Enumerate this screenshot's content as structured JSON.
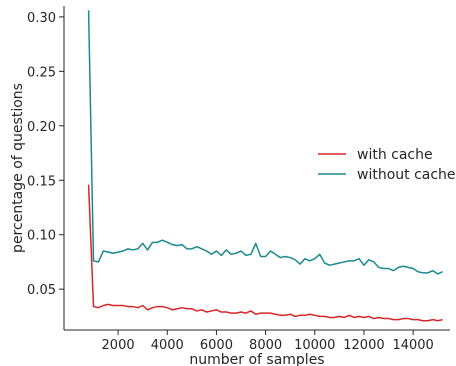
{
  "chart_data": {
    "type": "line",
    "title": "",
    "xlabel": "number of samples",
    "ylabel": "percentage of questions",
    "xlim": [
      -200,
      15500
    ],
    "ylim": [
      0.0125,
      0.31
    ],
    "xticks": [
      2000,
      4000,
      6000,
      8000,
      10000,
      12000,
      14000
    ],
    "yticks": [
      0.05,
      0.1,
      0.15,
      0.2,
      0.25,
      0.3
    ],
    "xtick_labels": [
      "2000",
      "4000",
      "6000",
      "8000",
      "10000",
      "12000",
      "14000"
    ],
    "ytick_labels": [
      "0.05",
      "0.10",
      "0.15",
      "0.20",
      "0.25",
      "0.30"
    ],
    "grid": false,
    "legend_position": "center-right",
    "series": [
      {
        "name": "with cache",
        "color": "#d62728",
        "x": [
          800,
          1000,
          1200,
          1400,
          1600,
          1800,
          2000,
          2200,
          2400,
          2600,
          2800,
          3000,
          3200,
          3400,
          3600,
          3800,
          4000,
          4200,
          4400,
          4600,
          4800,
          5000,
          5200,
          5400,
          5600,
          5800,
          6000,
          6200,
          6400,
          6600,
          6800,
          7000,
          7200,
          7400,
          7600,
          7800,
          8000,
          8200,
          8400,
          8600,
          8800,
          9000,
          9200,
          9400,
          9600,
          9800,
          10000,
          10200,
          10400,
          10600,
          10800,
          11000,
          11200,
          11400,
          11600,
          11800,
          12000,
          12200,
          12400,
          12600,
          12800,
          13000,
          13200,
          13400,
          13600,
          13800,
          14000,
          14200,
          14400,
          14600,
          14800,
          15000,
          15200
        ],
        "y": [
          0.146,
          0.034,
          0.033,
          0.035,
          0.036,
          0.035,
          0.035,
          0.035,
          0.034,
          0.034,
          0.033,
          0.035,
          0.031,
          0.033,
          0.034,
          0.034,
          0.033,
          0.031,
          0.032,
          0.033,
          0.032,
          0.032,
          0.03,
          0.031,
          0.029,
          0.03,
          0.031,
          0.029,
          0.029,
          0.028,
          0.028,
          0.029,
          0.028,
          0.03,
          0.027,
          0.028,
          0.028,
          0.028,
          0.027,
          0.026,
          0.026,
          0.027,
          0.025,
          0.026,
          0.026,
          0.027,
          0.026,
          0.025,
          0.025,
          0.024,
          0.024,
          0.025,
          0.024,
          0.026,
          0.024,
          0.025,
          0.024,
          0.025,
          0.023,
          0.024,
          0.023,
          0.023,
          0.022,
          0.022,
          0.023,
          0.023,
          0.022,
          0.022,
          0.021,
          0.021,
          0.022,
          0.021,
          0.022
        ]
      },
      {
        "name": "without cache",
        "color": "#1a8a8f",
        "x": [
          800,
          1000,
          1200,
          1400,
          1600,
          1800,
          2000,
          2200,
          2400,
          2600,
          2800,
          3000,
          3200,
          3400,
          3600,
          3800,
          4000,
          4200,
          4400,
          4600,
          4800,
          5000,
          5200,
          5400,
          5600,
          5800,
          6000,
          6200,
          6400,
          6600,
          6800,
          7000,
          7200,
          7400,
          7600,
          7800,
          8000,
          8200,
          8400,
          8600,
          8800,
          9000,
          9200,
          9400,
          9600,
          9800,
          10000,
          10200,
          10400,
          10600,
          10800,
          11000,
          11200,
          11400,
          11600,
          11800,
          12000,
          12200,
          12400,
          12600,
          12800,
          13000,
          13200,
          13400,
          13600,
          13800,
          14000,
          14200,
          14400,
          14600,
          14800,
          15000,
          15200
        ],
        "y": [
          0.306,
          0.076,
          0.075,
          0.085,
          0.084,
          0.083,
          0.084,
          0.085,
          0.087,
          0.086,
          0.087,
          0.092,
          0.086,
          0.093,
          0.093,
          0.095,
          0.093,
          0.091,
          0.09,
          0.091,
          0.087,
          0.087,
          0.089,
          0.087,
          0.085,
          0.082,
          0.085,
          0.081,
          0.086,
          0.082,
          0.083,
          0.085,
          0.081,
          0.082,
          0.092,
          0.08,
          0.08,
          0.085,
          0.082,
          0.079,
          0.08,
          0.079,
          0.077,
          0.073,
          0.078,
          0.076,
          0.078,
          0.082,
          0.074,
          0.072,
          0.073,
          0.074,
          0.075,
          0.076,
          0.076,
          0.078,
          0.072,
          0.077,
          0.075,
          0.07,
          0.069,
          0.069,
          0.067,
          0.07,
          0.071,
          0.07,
          0.069,
          0.066,
          0.065,
          0.065,
          0.067,
          0.064,
          0.066
        ]
      }
    ]
  }
}
